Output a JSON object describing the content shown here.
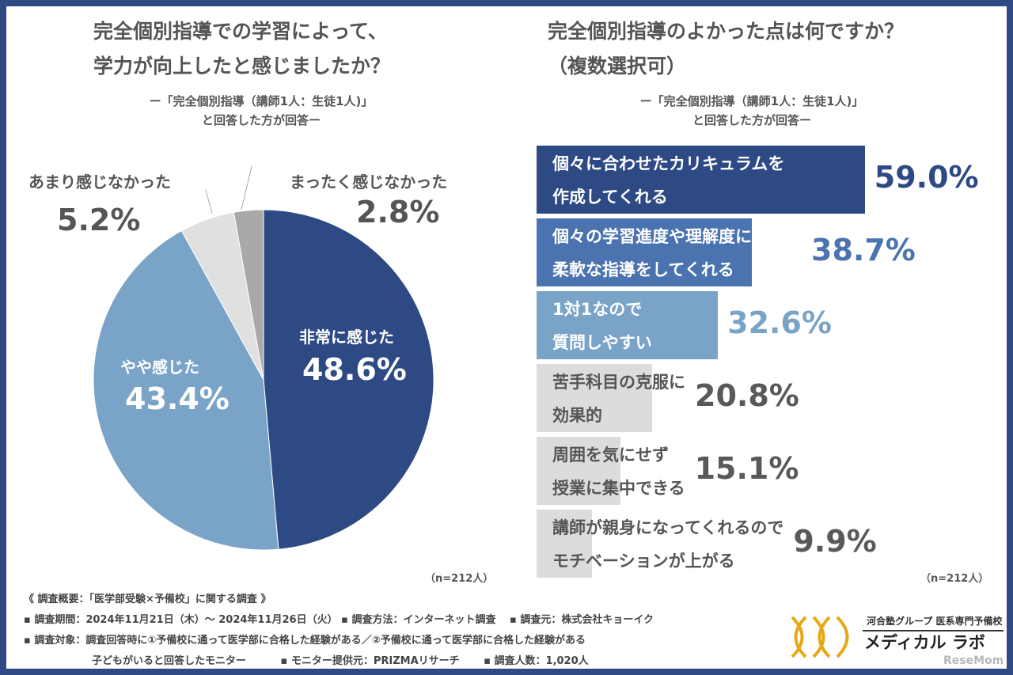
{
  "left": {
    "title1": "完全個別指導での学習によって、",
    "title2": "学力が向上したと感じましたか？",
    "sub1": "ー「完全個別指導（講師1人：生徒1人)」",
    "sub2": "と回答した方が回答ー",
    "n": "（n=212人）"
  },
  "right": {
    "title1": "完全個別指導のよかった点は何ですか？",
    "title2": "（複数選択可）",
    "sub1": "ー「完全個別指導（講師1人：生徒1人)」",
    "sub2": "と回答した方が回答ー",
    "n": "（n=212人）"
  },
  "chart_data": [
    {
      "type": "pie",
      "slices": [
        {
          "label": "非常に感じた",
          "value": 48.6,
          "value_label": "48.6%",
          "color": "#2e4a85"
        },
        {
          "label": "やや感じた",
          "value": 43.4,
          "value_label": "43.4%",
          "color": "#7aa3c8"
        },
        {
          "label": "あまり感じなかった",
          "value": 5.2,
          "value_label": "5.2%",
          "color": "#e0e0e0"
        },
        {
          "label": "まったく感じなかった",
          "value": 2.8,
          "value_label": "2.8%",
          "color": "#a9a9a9"
        }
      ]
    },
    {
      "type": "bar",
      "orientation": "horizontal",
      "categories": [
        [
          "個々に合わせたカリキュラムを",
          "作成してくれる"
        ],
        [
          "個々の学習進度や理解度に応じた",
          "柔軟な指導をしてくれる"
        ],
        [
          "1対1なので",
          "質問しやすい"
        ],
        [
          "苦手科目の克服に",
          "効果的"
        ],
        [
          "周囲を気にせず",
          "授業に集中できる"
        ],
        [
          "講師が親身になってくれるので",
          "モチベーションが上がる"
        ]
      ],
      "values": [
        59.0,
        38.7,
        32.6,
        20.8,
        15.1,
        9.9
      ],
      "value_labels": [
        "59.0%",
        "38.7%",
        "32.6%",
        "20.8%",
        "15.1%",
        "9.9%"
      ],
      "colors": [
        "#2e4a85",
        "#4a73b0",
        "#7aa3c8",
        "#dcdcdc",
        "#dcdcdc",
        "#dcdcdc"
      ],
      "text_colors": [
        "#ffffff",
        "#ffffff",
        "#ffffff",
        "#555555",
        "#555555",
        "#555555"
      ],
      "value_colors": [
        "#2e4a85",
        "#4a73b0",
        "#7aa3c8",
        "#595959",
        "#595959",
        "#595959"
      ]
    }
  ],
  "footer": {
    "l1": "《 調査概要：「医学部受験×予備校」に関する調査 》",
    "l2": "▪ 調査期間：2024年11月21日（木）～ 2024年11月26日（火） ▪ 調査方法：インターネット調査　 ▪ 調査元：株式会社キョーイク",
    "l3": "▪ 調査対象：調査回答時に①予備校に通って医学部に合格した経験がある／②予備校に通って医学部に合格した経験がある",
    "l4": "子どもがいると回答したモニター　　　 ▪ モニター提供元：PRIZMAリサーチ　　 ▪ 調査人数：1,020人"
  },
  "logo": {
    "group": "河合塾グループ 医系専門予備校",
    "name": "メディカル ラボ",
    "watermark": "ReseMom"
  }
}
